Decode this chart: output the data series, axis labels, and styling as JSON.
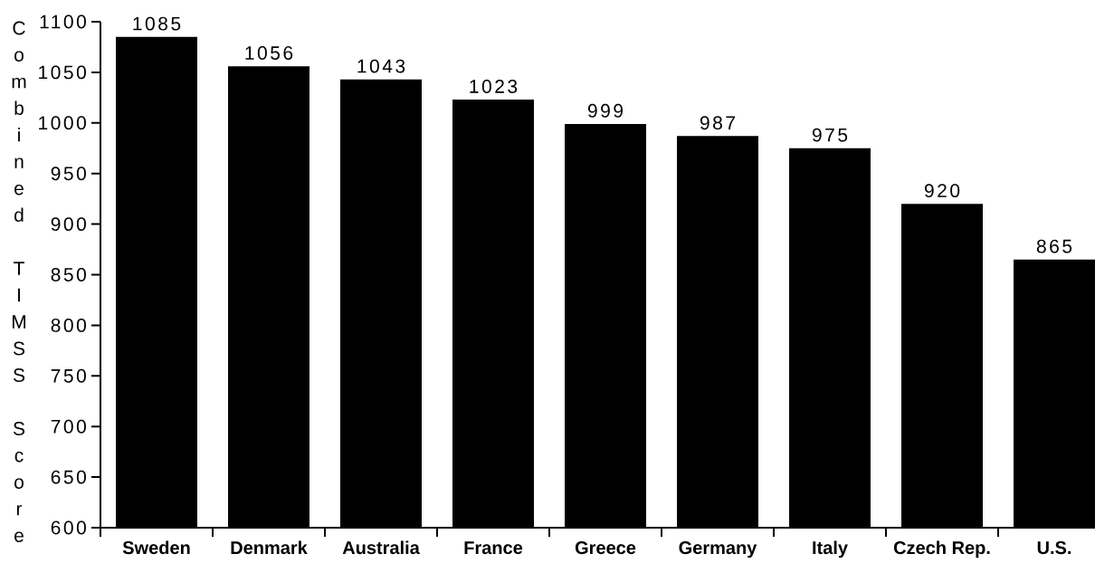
{
  "chart_data": {
    "type": "bar",
    "ylabel": "Combined TIMSS Score",
    "categories": [
      "Sweden",
      "Denmark",
      "Australia",
      "France",
      "Greece",
      "Germany",
      "Italy",
      "Czech Rep.",
      "U.S."
    ],
    "values": [
      1085,
      1056,
      1043,
      1023,
      999,
      987,
      975,
      920,
      865
    ],
    "color": "#000000",
    "ylim": [
      600,
      1100
    ],
    "yticks": [
      600,
      650,
      700,
      750,
      800,
      850,
      900,
      950,
      1000,
      1050,
      1100
    ],
    "data_labels": true
  }
}
